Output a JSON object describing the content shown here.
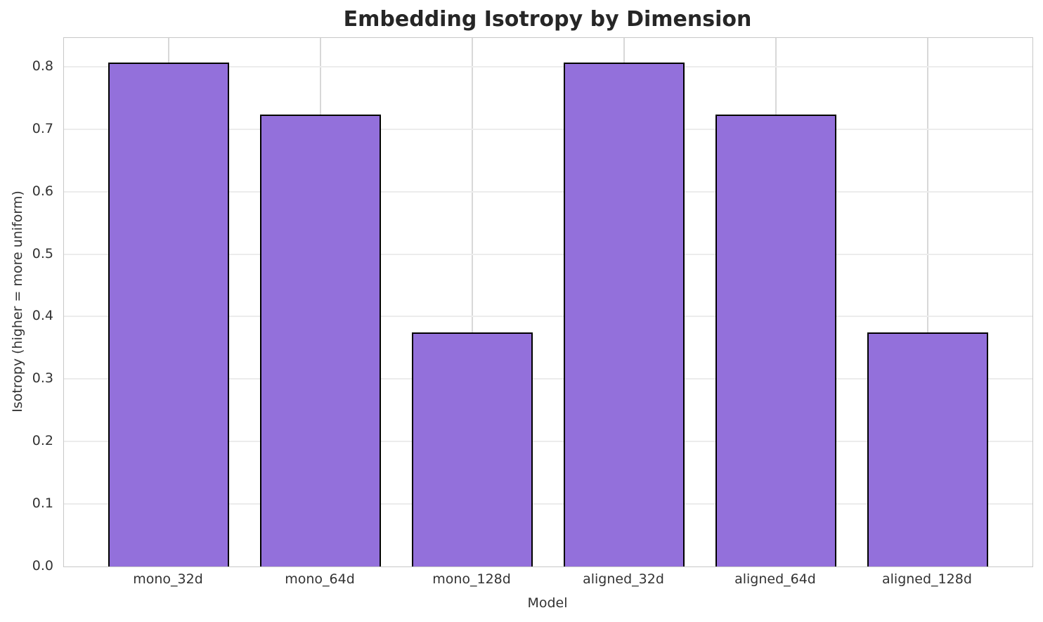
{
  "chart_data": {
    "type": "bar",
    "title": "Embedding Isotropy by Dimension",
    "xlabel": "Model",
    "ylabel": "Isotropy (higher = more uniform)",
    "categories": [
      "mono_32d",
      "mono_64d",
      "mono_128d",
      "aligned_32d",
      "aligned_64d",
      "aligned_128d"
    ],
    "values": [
      0.807,
      0.723,
      0.375,
      0.807,
      0.723,
      0.375
    ],
    "yticks": [
      0.0,
      0.1,
      0.2,
      0.3,
      0.4,
      0.5,
      0.6,
      0.7,
      0.8
    ],
    "ytick_labels": [
      "0.0",
      "0.1",
      "0.2",
      "0.3",
      "0.4",
      "0.5",
      "0.6",
      "0.7",
      "0.8"
    ],
    "ylim": [
      0,
      0.846
    ],
    "xlim": [
      -0.69,
      5.69
    ],
    "bar_width": 0.8,
    "grid": true,
    "legend_position": "none",
    "colors": {
      "bar_fill": "#9370DB",
      "bar_edge": "#000000",
      "grid_horizontal": "#ECECEC",
      "grid_vertical": "#D8D8D8",
      "spine": "#C8C8C8",
      "text": "#333333"
    }
  }
}
